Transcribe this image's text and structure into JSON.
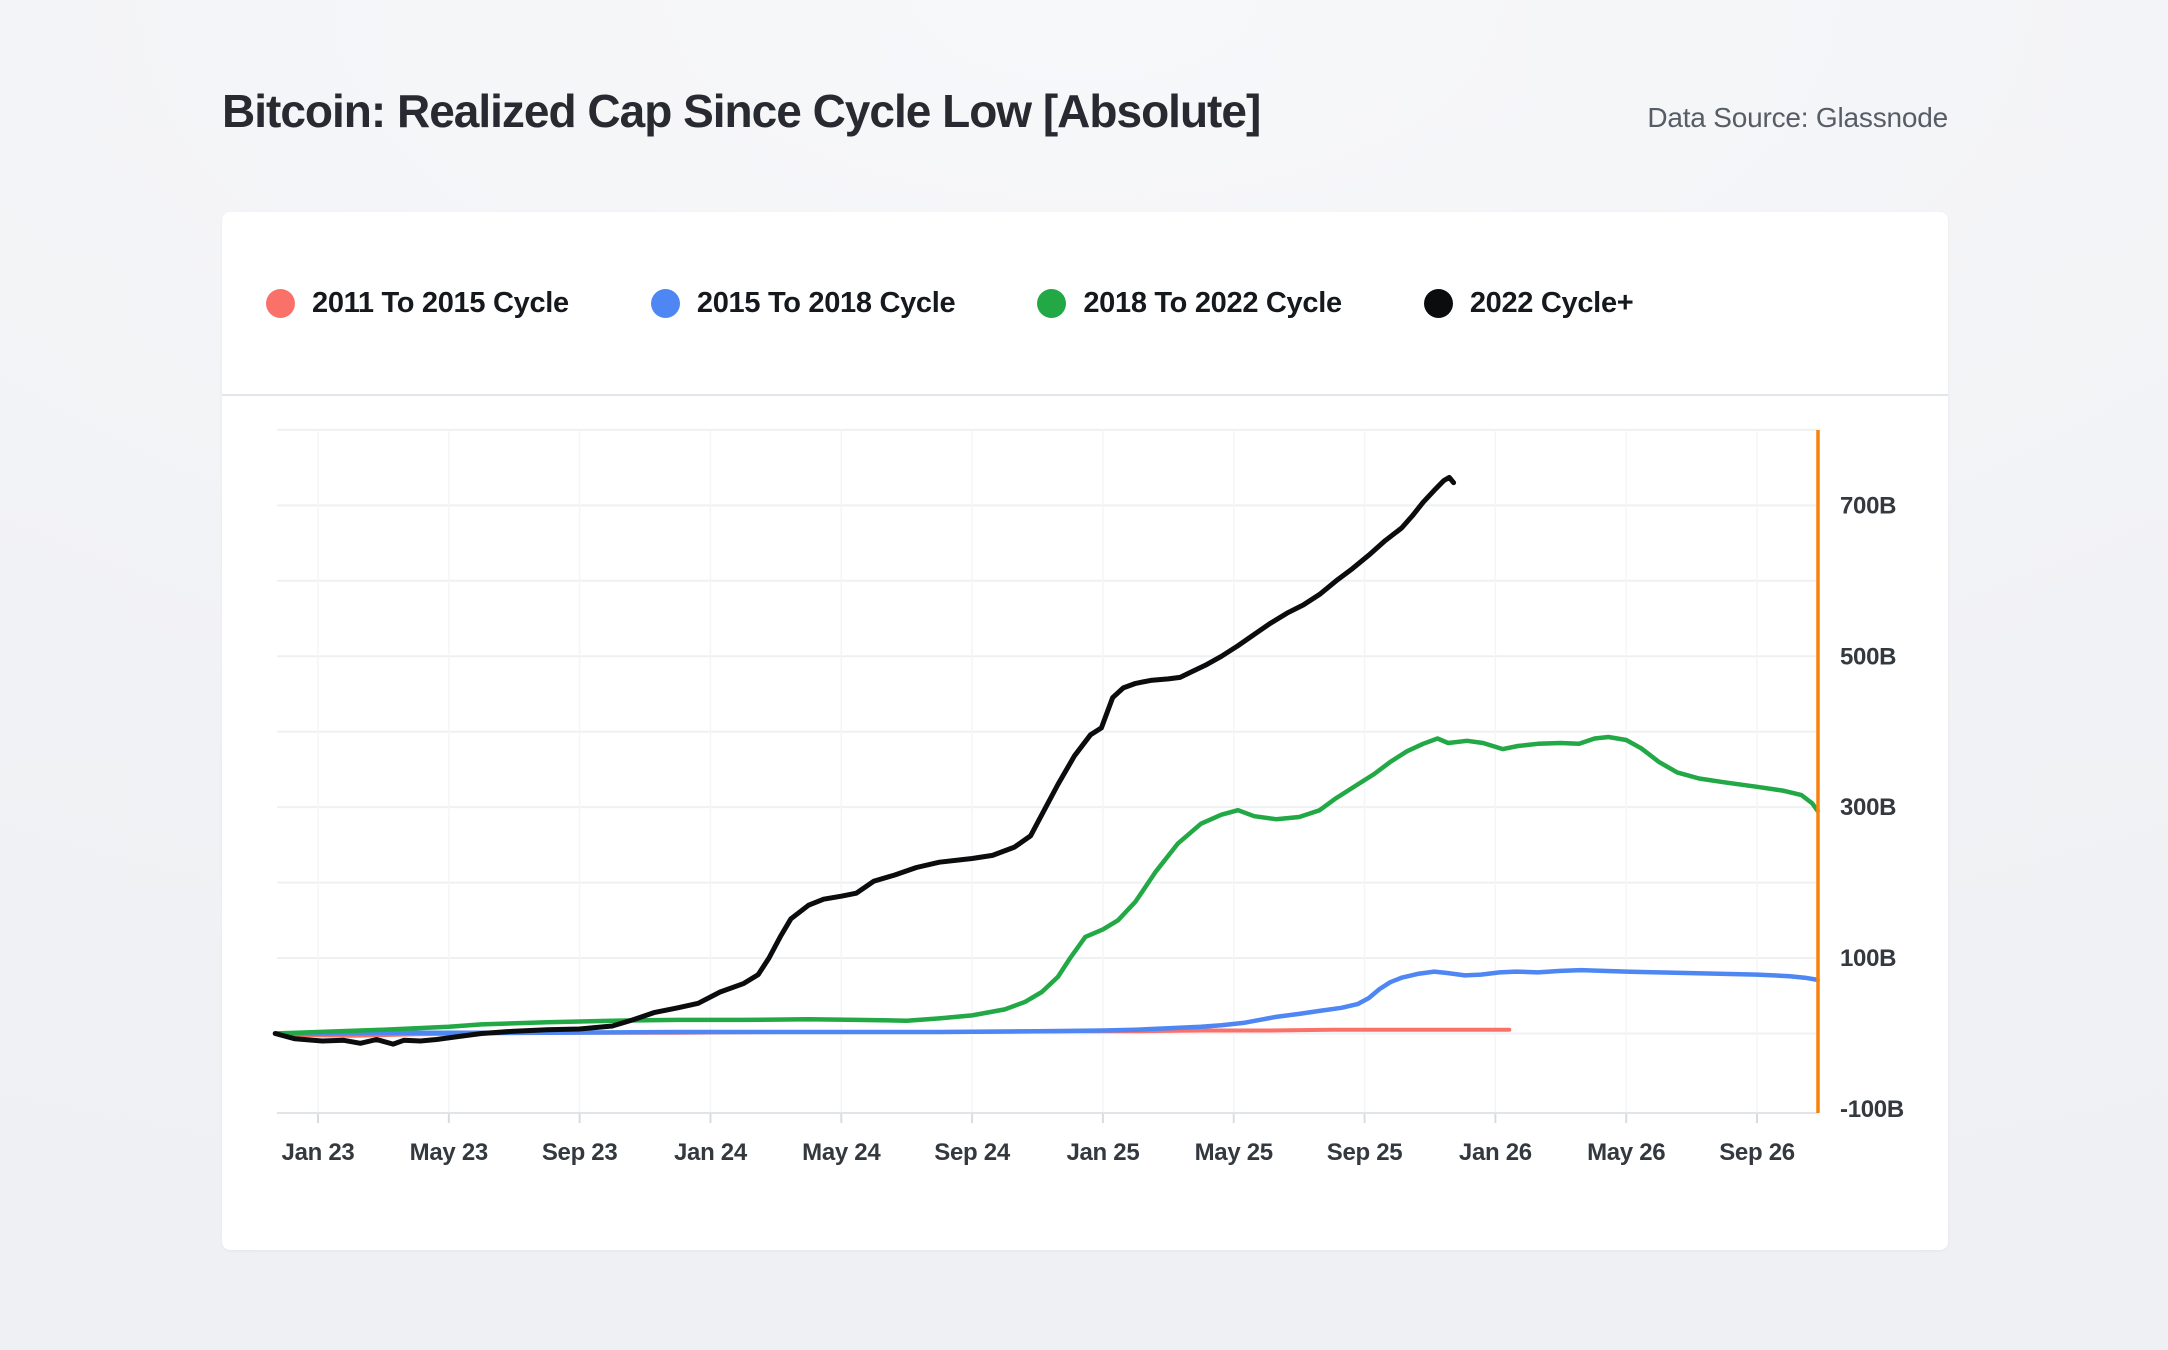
{
  "page": {
    "title": "Bitcoin: Realized Cap Since Cycle Low [Absolute]",
    "data_source": "Data Source: Glassnode"
  },
  "legend": {
    "items": [
      {
        "label": "2011 To 2015 Cycle",
        "color": "#fa716a"
      },
      {
        "label": "2015 To 2018 Cycle",
        "color": "#4e87f3"
      },
      {
        "label": "2018 To 2022 Cycle",
        "color": "#22a845"
      },
      {
        "label": "2022 Cycle+",
        "color": "#0b0c0e"
      }
    ]
  },
  "chart_data": {
    "type": "line",
    "title": "Bitcoin: Realized Cap Since Cycle Low [Absolute]",
    "unit": "USD billions (realized cap gained since cycle low)",
    "grid": true,
    "legend_position": "top",
    "x_axis": {
      "tick_labels": [
        "Jan 23",
        "May 23",
        "Sep 23",
        "Jan 24",
        "May 24",
        "Sep 24",
        "Jan 25",
        "May 25",
        "Sep 25",
        "Jan 26",
        "May 26",
        "Sep 26"
      ],
      "tick_dates": [
        "2023-01",
        "2023-05",
        "2023-09",
        "2024-01",
        "2024-05",
        "2024-09",
        "2025-01",
        "2025-05",
        "2025-09",
        "2026-01",
        "2026-05",
        "2026-09"
      ],
      "range_dates": [
        "2022-11-22",
        "2026-10-27"
      ]
    },
    "y_axis": {
      "tick_labels": [
        "700B",
        "500B",
        "300B",
        "100B",
        "-100B"
      ],
      "tick_values": [
        700,
        500,
        300,
        100,
        -100
      ],
      "gridline_step_billions": 100,
      "range_billions": [
        -105,
        800
      ],
      "position": "right"
    },
    "annotations": [
      {
        "type": "vertical-line",
        "color": "#f9820f",
        "at": "right edge of plot (~late Oct 2026)"
      }
    ],
    "series": [
      {
        "name": "2011 To 2015 Cycle",
        "color": "#fa716a",
        "stroke_width": 4,
        "points": [
          [
            "2022-11-22",
            0
          ],
          [
            "2022-12-15",
            -2
          ],
          [
            "2023-02-01",
            -3
          ],
          [
            "2023-04-01",
            -1
          ],
          [
            "2023-06-01",
            0
          ],
          [
            "2023-09-01",
            1
          ],
          [
            "2023-12-01",
            1
          ],
          [
            "2024-03-01",
            2
          ],
          [
            "2024-06-01",
            2
          ],
          [
            "2024-09-01",
            2
          ],
          [
            "2024-12-01",
            3
          ],
          [
            "2025-02-01",
            3
          ],
          [
            "2025-04-01",
            4
          ],
          [
            "2025-06-01",
            4
          ],
          [
            "2025-08-01",
            5
          ],
          [
            "2025-10-01",
            5
          ],
          [
            "2025-12-01",
            5
          ],
          [
            "2026-01-14",
            5
          ]
        ]
      },
      {
        "name": "2015 To 2018 Cycle",
        "color": "#4e87f3",
        "stroke_width": 4.5,
        "points": [
          [
            "2022-11-22",
            0
          ],
          [
            "2023-01-01",
            0
          ],
          [
            "2023-04-01",
            1
          ],
          [
            "2023-08-01",
            1
          ],
          [
            "2023-12-01",
            2
          ],
          [
            "2024-04-01",
            2
          ],
          [
            "2024-08-01",
            2
          ],
          [
            "2024-11-01",
            3
          ],
          [
            "2025-01-01",
            4
          ],
          [
            "2025-02-01",
            5
          ],
          [
            "2025-03-01",
            7
          ],
          [
            "2025-04-01",
            9
          ],
          [
            "2025-04-20",
            11
          ],
          [
            "2025-05-10",
            14
          ],
          [
            "2025-05-25",
            18
          ],
          [
            "2025-06-10",
            22
          ],
          [
            "2025-07-01",
            26
          ],
          [
            "2025-07-20",
            30
          ],
          [
            "2025-08-10",
            34
          ],
          [
            "2025-08-25",
            39
          ],
          [
            "2025-09-05",
            47
          ],
          [
            "2025-09-15",
            59
          ],
          [
            "2025-09-25",
            68
          ],
          [
            "2025-10-05",
            74
          ],
          [
            "2025-10-20",
            79
          ],
          [
            "2025-11-05",
            82
          ],
          [
            "2025-11-18",
            80
          ],
          [
            "2025-12-03",
            77
          ],
          [
            "2025-12-18",
            78
          ],
          [
            "2026-01-05",
            81
          ],
          [
            "2026-01-20",
            82
          ],
          [
            "2026-02-10",
            81
          ],
          [
            "2026-03-01",
            83
          ],
          [
            "2026-03-20",
            84
          ],
          [
            "2026-04-10",
            83
          ],
          [
            "2026-05-01",
            82
          ],
          [
            "2026-06-01",
            81
          ],
          [
            "2026-07-01",
            80
          ],
          [
            "2026-08-01",
            79
          ],
          [
            "2026-09-01",
            78
          ],
          [
            "2026-10-01",
            76
          ],
          [
            "2026-10-15",
            74
          ],
          [
            "2026-10-27",
            71
          ]
        ]
      },
      {
        "name": "2018 To 2022 Cycle",
        "color": "#22a845",
        "stroke_width": 4.5,
        "points": [
          [
            "2022-11-22",
            0
          ],
          [
            "2023-01-01",
            2
          ],
          [
            "2023-03-01",
            5
          ],
          [
            "2023-05-01",
            9
          ],
          [
            "2023-06-01",
            12
          ],
          [
            "2023-08-01",
            15
          ],
          [
            "2023-10-01",
            17
          ],
          [
            "2023-12-01",
            18
          ],
          [
            "2024-02-01",
            18
          ],
          [
            "2024-04-01",
            19
          ],
          [
            "2024-05-15",
            18
          ],
          [
            "2024-07-01",
            17
          ],
          [
            "2024-08-01",
            20
          ],
          [
            "2024-09-01",
            24
          ],
          [
            "2024-10-01",
            32
          ],
          [
            "2024-10-20",
            42
          ],
          [
            "2024-11-05",
            55
          ],
          [
            "2024-11-20",
            75
          ],
          [
            "2024-12-01",
            100
          ],
          [
            "2024-12-15",
            128
          ],
          [
            "2025-01-01",
            138
          ],
          [
            "2025-01-15",
            150
          ],
          [
            "2025-02-01",
            175
          ],
          [
            "2025-02-20",
            215
          ],
          [
            "2025-03-10",
            252
          ],
          [
            "2025-04-01",
            278
          ],
          [
            "2025-04-20",
            290
          ],
          [
            "2025-05-05",
            296
          ],
          [
            "2025-05-20",
            288
          ],
          [
            "2025-06-10",
            284
          ],
          [
            "2025-07-01",
            287
          ],
          [
            "2025-07-20",
            296
          ],
          [
            "2025-08-05",
            312
          ],
          [
            "2025-08-25",
            330
          ],
          [
            "2025-09-10",
            344
          ],
          [
            "2025-09-25",
            360
          ],
          [
            "2025-10-10",
            374
          ],
          [
            "2025-10-25",
            384
          ],
          [
            "2025-11-08",
            391
          ],
          [
            "2025-11-18",
            385
          ],
          [
            "2025-12-05",
            388
          ],
          [
            "2025-12-20",
            385
          ],
          [
            "2026-01-08",
            377
          ],
          [
            "2026-01-22",
            381
          ],
          [
            "2026-02-10",
            384
          ],
          [
            "2026-03-01",
            385
          ],
          [
            "2026-03-18",
            384
          ],
          [
            "2026-04-02",
            391
          ],
          [
            "2026-04-15",
            393
          ],
          [
            "2026-05-01",
            389
          ],
          [
            "2026-05-15",
            378
          ],
          [
            "2026-06-01",
            360
          ],
          [
            "2026-06-18",
            346
          ],
          [
            "2026-07-08",
            338
          ],
          [
            "2026-08-01",
            333
          ],
          [
            "2026-09-01",
            327
          ],
          [
            "2026-09-25",
            322
          ],
          [
            "2026-10-12",
            316
          ],
          [
            "2026-10-22",
            305
          ],
          [
            "2026-10-27",
            295
          ]
        ]
      },
      {
        "name": "2022 Cycle+",
        "color": "#0b0c0e",
        "stroke_width": 5,
        "points": [
          [
            "2022-11-22",
            0
          ],
          [
            "2022-12-10",
            -7
          ],
          [
            "2023-01-05",
            -10
          ],
          [
            "2023-01-25",
            -9
          ],
          [
            "2023-02-10",
            -13
          ],
          [
            "2023-02-25",
            -8
          ],
          [
            "2023-03-10",
            -14
          ],
          [
            "2023-03-20",
            -9
          ],
          [
            "2023-04-05",
            -10
          ],
          [
            "2023-04-20",
            -8
          ],
          [
            "2023-05-10",
            -4
          ],
          [
            "2023-06-01",
            0
          ],
          [
            "2023-07-01",
            3
          ],
          [
            "2023-08-01",
            5
          ],
          [
            "2023-09-01",
            6
          ],
          [
            "2023-10-01",
            10
          ],
          [
            "2023-10-20",
            18
          ],
          [
            "2023-11-10",
            28
          ],
          [
            "2023-12-01",
            34
          ],
          [
            "2023-12-20",
            40
          ],
          [
            "2024-01-10",
            55
          ],
          [
            "2024-02-01",
            66
          ],
          [
            "2024-02-15",
            78
          ],
          [
            "2024-02-25",
            100
          ],
          [
            "2024-03-05",
            128
          ],
          [
            "2024-03-15",
            152
          ],
          [
            "2024-04-01",
            170
          ],
          [
            "2024-04-15",
            178
          ],
          [
            "2024-05-01",
            182
          ],
          [
            "2024-05-15",
            186
          ],
          [
            "2024-06-01",
            202
          ],
          [
            "2024-06-20",
            210
          ],
          [
            "2024-07-10",
            220
          ],
          [
            "2024-08-01",
            227
          ],
          [
            "2024-09-01",
            232
          ],
          [
            "2024-09-20",
            236
          ],
          [
            "2024-10-10",
            247
          ],
          [
            "2024-10-25",
            262
          ],
          [
            "2024-11-05",
            290
          ],
          [
            "2024-11-20",
            330
          ],
          [
            "2024-12-05",
            368
          ],
          [
            "2024-12-20",
            396
          ],
          [
            "2024-12-30",
            405
          ],
          [
            "2025-01-10",
            445
          ],
          [
            "2025-01-20",
            458
          ],
          [
            "2025-02-01",
            464
          ],
          [
            "2025-02-15",
            468
          ],
          [
            "2025-03-01",
            470
          ],
          [
            "2025-03-12",
            472
          ],
          [
            "2025-03-22",
            479
          ],
          [
            "2025-04-05",
            488
          ],
          [
            "2025-04-20",
            500
          ],
          [
            "2025-05-05",
            514
          ],
          [
            "2025-05-20",
            529
          ],
          [
            "2025-06-05",
            544
          ],
          [
            "2025-06-20",
            557
          ],
          [
            "2025-07-05",
            568
          ],
          [
            "2025-07-20",
            582
          ],
          [
            "2025-08-05",
            600
          ],
          [
            "2025-08-20",
            616
          ],
          [
            "2025-09-05",
            634
          ],
          [
            "2025-09-20",
            653
          ],
          [
            "2025-10-05",
            670
          ],
          [
            "2025-10-15",
            686
          ],
          [
            "2025-10-25",
            704
          ],
          [
            "2025-11-05",
            720
          ],
          [
            "2025-11-14",
            733
          ],
          [
            "2025-11-19",
            737
          ],
          [
            "2025-11-23",
            730
          ]
        ]
      }
    ]
  }
}
